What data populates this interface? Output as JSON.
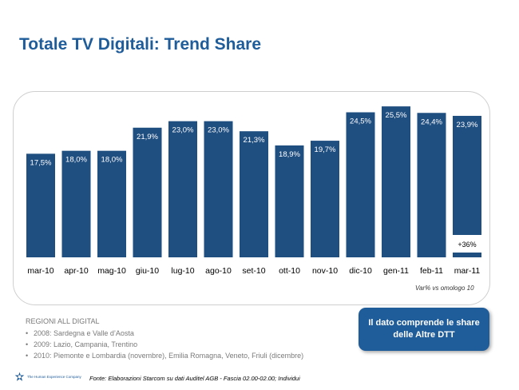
{
  "page": {
    "title": "Totale TV Digitali: Trend Share",
    "var_note": "Var% vs omologo 10",
    "regions": {
      "heading": "REGIONI ALL DIGITAL",
      "items": [
        "2008: Sardegna e Valle d’Aosta",
        "2009: Lazio, Campania, Trentino",
        "2010: Piemonte e Lombardia (novembre), Emilia Romagna, Veneto, Friuli (dicembre)"
      ]
    },
    "callout": "Il dato comprende le share delle Altre DTT",
    "logo_text": "The Human Experience Company",
    "source": "Fonte: Elaborazioni Starcom su dati Auditel AGB - Fascia 02.00-02.00; Individui"
  },
  "chart_data": {
    "type": "bar",
    "title": "",
    "xlabel": "",
    "ylabel": "",
    "ylim": [
      0,
      27
    ],
    "grid": false,
    "bar_color": "#1f4e80",
    "categories": [
      "mar-10",
      "apr-10",
      "mag-10",
      "giu-10",
      "lug-10",
      "ago-10",
      "set-10",
      "ott-10",
      "nov-10",
      "dic-10",
      "gen-11",
      "feb-11",
      "mar-11"
    ],
    "values": [
      17.5,
      18.0,
      18.0,
      21.9,
      23.0,
      23.0,
      21.3,
      18.9,
      19.7,
      24.5,
      25.5,
      24.4,
      23.9
    ],
    "labels": [
      "17,5%",
      "18,0%",
      "18,0%",
      "21,9%",
      "23,0%",
      "23,0%",
      "21,3%",
      "18,9%",
      "19,7%",
      "24,5%",
      "25,5%",
      "24,4%",
      "23,9%"
    ],
    "annotation": {
      "category": "mar-11",
      "text": "+36%"
    }
  }
}
